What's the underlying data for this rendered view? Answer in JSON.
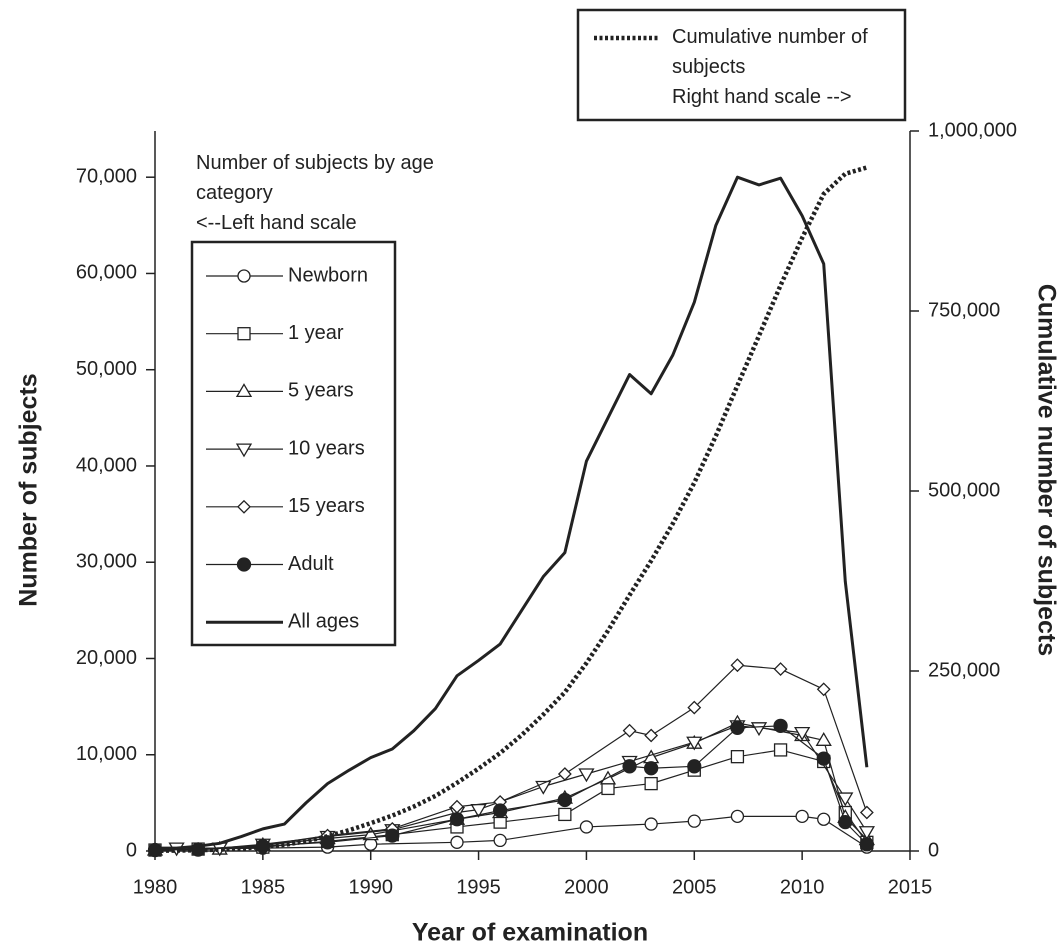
{
  "chart_data": {
    "type": "line",
    "xlabel": "Year of examination",
    "ylabel": "Number of subjects",
    "y2label": "Cumulative number of subjects",
    "annotations": [
      "Number of subjects by age category",
      "<--Left hand scale",
      "Right hand scale -->"
    ],
    "xlim": [
      1980,
      2015
    ],
    "xticks": [
      1980,
      1985,
      1990,
      1995,
      2000,
      2005,
      2010,
      2015
    ],
    "ylim": [
      0,
      74800
    ],
    "yticks": [
      0,
      {
        "value": 10000,
        "label": "10,000"
      },
      {
        "value": 20000,
        "label": "20,000"
      },
      {
        "value": 30000,
        "label": "30,000"
      },
      {
        "value": 40000,
        "label": "40,000"
      },
      {
        "value": 50000,
        "label": "50,000"
      },
      {
        "value": 60000,
        "label": "60,000"
      },
      {
        "value": 70000,
        "label": "70,000"
      }
    ],
    "y2lim": [
      0,
      1000000
    ],
    "y2ticks": [
      0,
      {
        "value": 250000,
        "label": "250,000"
      },
      {
        "value": 500000,
        "label": "500,000"
      },
      {
        "value": 750000,
        "label": "750,000"
      },
      {
        "value": 1000000,
        "label": "1,000,000"
      }
    ],
    "x": [
      1980,
      1981,
      1982,
      1983,
      1984,
      1985,
      1986,
      1987,
      1988,
      1989,
      1990,
      1991,
      1992,
      1993,
      1994,
      1995,
      1996,
      1997,
      1998,
      1999,
      2000,
      2001,
      2002,
      2003,
      2004,
      2005,
      2006,
      2007,
      2008,
      2009,
      2010,
      2011,
      2012,
      2013
    ],
    "series": [
      {
        "name": "Newborn",
        "color": "#222222",
        "marker": "circle",
        "x": [
          1980,
          1982,
          1985,
          1988,
          1990,
          1994,
          1996,
          2000,
          2003,
          2005,
          2007,
          2010,
          2011,
          2013
        ],
        "values": [
          100,
          200,
          300,
          400,
          700,
          900,
          1100,
          2500,
          2800,
          3100,
          3600,
          3600,
          3300,
          400
        ]
      },
      {
        "name": "1 year",
        "color": "#222222",
        "marker": "square",
        "x": [
          1980,
          1982,
          1985,
          1988,
          1991,
          1994,
          1996,
          1999,
          2001,
          2003,
          2005,
          2007,
          2009,
          2011,
          2012,
          2013
        ],
        "values": [
          100,
          200,
          400,
          1000,
          1700,
          2500,
          3000,
          3800,
          6500,
          7000,
          8400,
          9800,
          10500,
          9300,
          4000,
          900
        ]
      },
      {
        "name": "5 years",
        "color": "#222222",
        "marker": "triangle-up",
        "x": [
          1980,
          1983,
          1985,
          1988,
          1990,
          1994,
          1996,
          1999,
          2001,
          2003,
          2005,
          2007,
          2010,
          2011,
          2012,
          2013
        ],
        "values": [
          100,
          200,
          600,
          1300,
          1700,
          3300,
          4000,
          5500,
          7500,
          9700,
          11200,
          13300,
          12000,
          11500,
          3500,
          1200
        ]
      },
      {
        "name": "10 years",
        "color": "#222222",
        "marker": "triangle-down",
        "x": [
          1981,
          1983,
          1985,
          1988,
          1991,
          1994,
          1995,
          1998,
          2000,
          2002,
          2005,
          2007,
          2008,
          2010,
          2012,
          2013
        ],
        "values": [
          300,
          300,
          700,
          1500,
          2200,
          4000,
          4300,
          6700,
          8000,
          9300,
          11300,
          13000,
          12800,
          12300,
          5500,
          2000
        ]
      },
      {
        "name": "15 years",
        "color": "#222222",
        "marker": "diamond",
        "x": [
          1980,
          1982,
          1985,
          1988,
          1991,
          1994,
          1996,
          1999,
          2002,
          2003,
          2005,
          2007,
          2009,
          2011,
          2013
        ],
        "values": [
          100,
          200,
          600,
          1600,
          2300,
          4600,
          5100,
          8000,
          12500,
          12000,
          14900,
          19300,
          18900,
          16800,
          4000
        ]
      },
      {
        "name": "Adult",
        "color": "#222222",
        "marker": "dot",
        "x": [
          1980,
          1982,
          1985,
          1988,
          1991,
          1994,
          1996,
          1999,
          2002,
          2003,
          2005,
          2007,
          2009,
          2011,
          2012,
          2013
        ],
        "values": [
          100,
          150,
          500,
          900,
          1600,
          3300,
          4200,
          5300,
          8800,
          8600,
          8800,
          12800,
          13000,
          9600,
          3000,
          700
        ]
      },
      {
        "name": "All ages",
        "color": "#222222",
        "values": [
          300,
          300,
          500,
          800,
          1500,
          2300,
          2800,
          5000,
          7000,
          8400,
          9700,
          10600,
          12500,
          14800,
          18200,
          19800,
          21500,
          25000,
          28500,
          31000,
          40500,
          45000,
          49500,
          47500,
          51500,
          57000,
          65000,
          70000,
          69200,
          69900,
          66000,
          61000,
          28000,
          8700
        ]
      },
      {
        "name": "Cumulative number of subjects",
        "color": "#222222",
        "axis": "y2",
        "dashed": true,
        "values": [
          300,
          600,
          1100,
          1900,
          3400,
          5700,
          8500,
          13500,
          20500,
          28900,
          38600,
          49200,
          61700,
          76500,
          94700,
          114500,
          136000,
          161000,
          189500,
          220500,
          261000,
          306000,
          355500,
          403000,
          454500,
          511500,
          576500,
          646500,
          715700,
          785600,
          851600,
          912600,
          940600,
          949300
        ]
      }
    ]
  }
}
